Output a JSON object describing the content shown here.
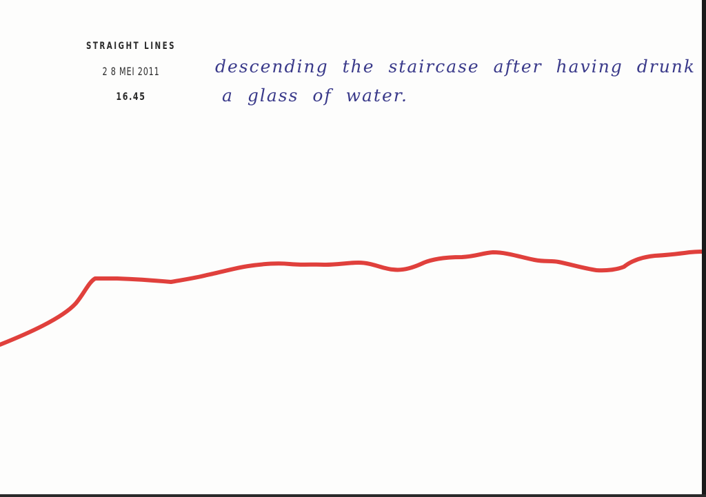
{
  "stamp": {
    "title": "STRAIGHT LINES",
    "date": "2 8 MEI 2011",
    "time": "16.45"
  },
  "handwriting": {
    "line1": "descending the staircase after having drunk",
    "line2": "a glass of water."
  },
  "line": {
    "color": "#e0403c"
  }
}
